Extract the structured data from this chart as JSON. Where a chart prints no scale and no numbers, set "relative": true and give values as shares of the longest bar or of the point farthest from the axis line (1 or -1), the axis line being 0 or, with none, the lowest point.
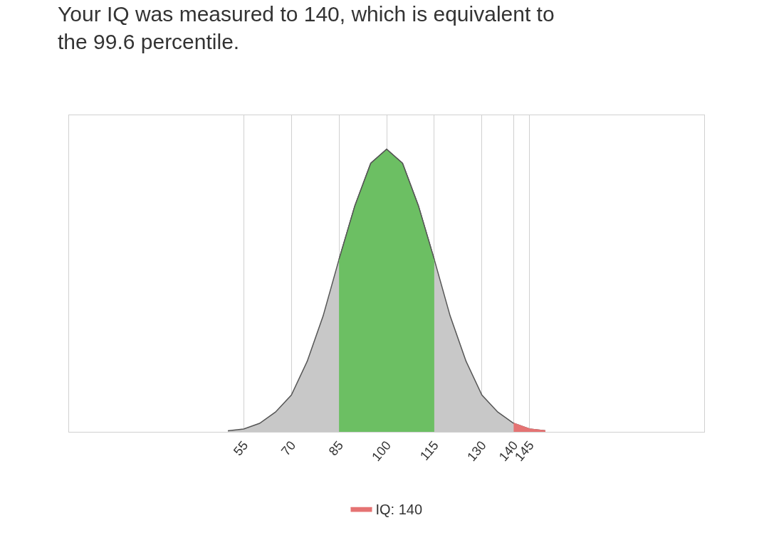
{
  "chart_data": {
    "type": "area",
    "title": "Your IQ was measured to 140, which is equivalent to the 99.6 percentile.",
    "relative": true,
    "xlim": [
      0,
      200
    ],
    "xticks": [
      55,
      70,
      85,
      100,
      115,
      130,
      140,
      145
    ],
    "grid": "x",
    "legend": "bottom",
    "series": [
      {
        "color": "#c8c8c8",
        "x": [
          50,
          55,
          60,
          65,
          70,
          75,
          80,
          85,
          90,
          95,
          100,
          105,
          110,
          115,
          120,
          125,
          130,
          135,
          140,
          145,
          150
        ],
        "values": [
          0.004,
          0.01,
          0.03,
          0.07,
          0.13,
          0.25,
          0.41,
          0.61,
          0.8,
          0.95,
          1,
          0.95,
          0.8,
          0.61,
          0.41,
          0.25,
          0.13,
          0.07,
          0.03,
          0.01,
          0.004
        ]
      },
      {
        "color": "#6cbf63",
        "x": [
          85,
          90,
          95,
          100,
          105,
          110,
          115
        ],
        "values": [
          0.61,
          0.8,
          0.95,
          1,
          0.95,
          0.8,
          0.61
        ]
      },
      {
        "name": "IQ: 140",
        "color": "#e57373",
        "x": [
          140,
          145,
          150
        ],
        "values": [
          0.03,
          0.01,
          0.004
        ]
      }
    ]
  }
}
